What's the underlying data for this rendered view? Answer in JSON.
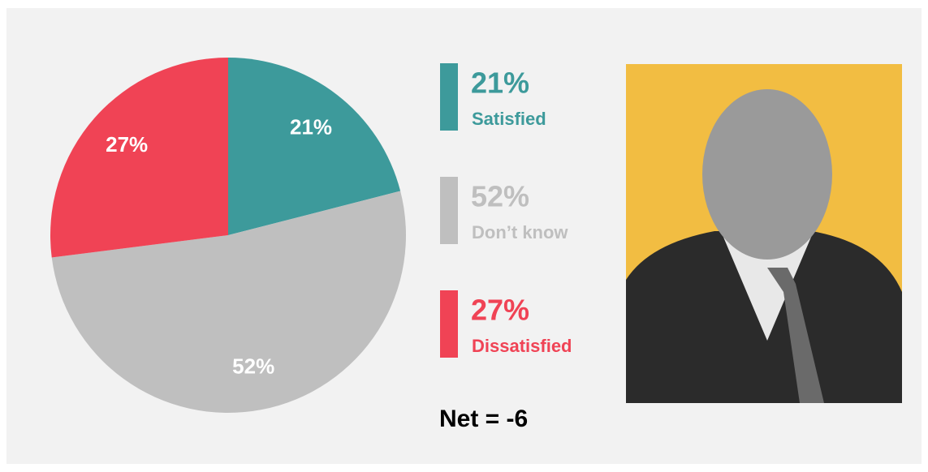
{
  "chart_data": {
    "type": "pie",
    "categories": [
      "Satisfied",
      "Don’t know",
      "Dissatisfied"
    ],
    "values": [
      21,
      52,
      27
    ],
    "value_labels": [
      "21%",
      "52%",
      "27%"
    ],
    "colors": [
      "#3d9a9b",
      "#bfbfbf",
      "#f04355"
    ],
    "annotation": "Net = -6"
  }
}
